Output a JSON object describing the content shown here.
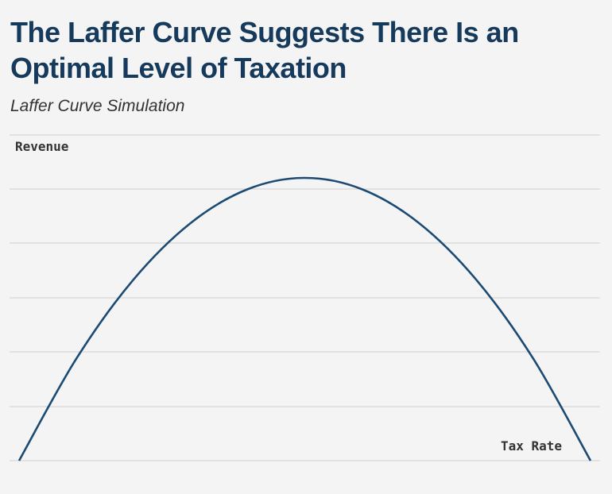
{
  "title": "The Laffer Curve Suggests There Is an Optimal Level of Taxation",
  "subtitle": "Laffer Curve Simulation",
  "chart_data": {
    "type": "line",
    "title": "The Laffer Curve Suggests There Is an Optimal Level of Taxation",
    "subtitle": "Laffer Curve Simulation",
    "xlabel": "Tax Rate",
    "ylabel": "Revenue",
    "xlim": [
      0,
      100
    ],
    "ylim": [
      0,
      100
    ],
    "y_gridlines": [
      0,
      17,
      34,
      51,
      68,
      85
    ],
    "x": [
      0,
      10,
      20,
      30,
      40,
      50,
      60,
      70,
      80,
      90,
      100
    ],
    "series": [
      {
        "name": "",
        "values": [
          0,
          36,
          64,
          84,
          96,
          100,
          96,
          84,
          64,
          36,
          0
        ]
      }
    ],
    "grid": true,
    "line_color": "#1b4a73",
    "grid_color": "#cfcfcf"
  }
}
